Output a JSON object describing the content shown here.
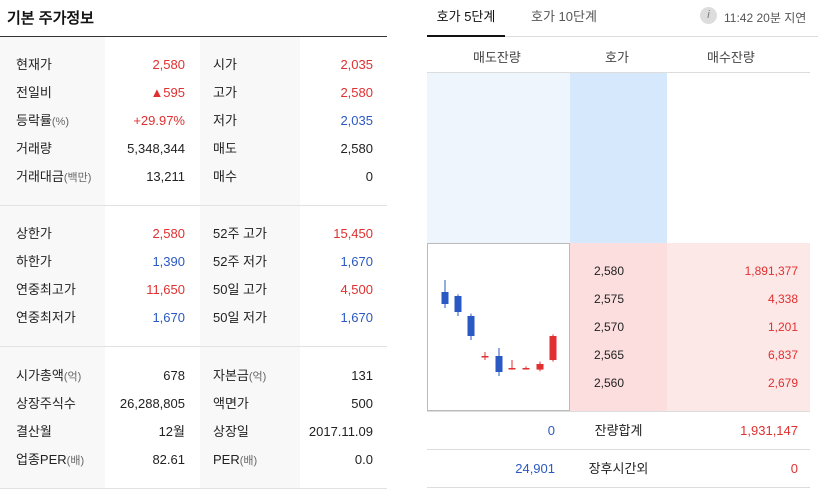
{
  "left": {
    "title": "기본 주가정보",
    "s1": [
      {
        "l1": "현재가",
        "l1s": "",
        "v1": "2,580",
        "c1": "red",
        "l2": "시가",
        "l2s": "",
        "v2": "2,035",
        "c2": "red"
      },
      {
        "l1": "전일비",
        "l1s": "",
        "v1": "▲595",
        "c1": "red",
        "l2": "고가",
        "l2s": "",
        "v2": "2,580",
        "c2": "red"
      },
      {
        "l1": "등락률",
        "l1s": "(%)",
        "v1": "+29.97%",
        "c1": "red",
        "l2": "저가",
        "l2s": "",
        "v2": "2,035",
        "c2": "blue"
      },
      {
        "l1": "거래량",
        "l1s": "",
        "v1": "5,348,344",
        "c1": "dark",
        "l2": "매도",
        "l2s": "",
        "v2": "2,580",
        "c2": "dark"
      },
      {
        "l1": "거래대금",
        "l1s": "(백만)",
        "v1": "13,211",
        "c1": "dark",
        "l2": "매수",
        "l2s": "",
        "v2": "0",
        "c2": "dark"
      }
    ],
    "s2": [
      {
        "l1": "상한가",
        "l1s": "",
        "v1": "2,580",
        "c1": "red",
        "l2": "52주 고가",
        "l2s": "",
        "v2": "15,450",
        "c2": "red"
      },
      {
        "l1": "하한가",
        "l1s": "",
        "v1": "1,390",
        "c1": "blue",
        "l2": "52주 저가",
        "l2s": "",
        "v2": "1,670",
        "c2": "blue"
      },
      {
        "l1": "연중최고가",
        "l1s": "",
        "v1": "11,650",
        "c1": "red",
        "l2": "50일 고가",
        "l2s": "",
        "v2": "4,500",
        "c2": "red"
      },
      {
        "l1": "연중최저가",
        "l1s": "",
        "v1": "1,670",
        "c1": "blue",
        "l2": "50일 저가",
        "l2s": "",
        "v2": "1,670",
        "c2": "blue"
      }
    ],
    "s3": [
      {
        "l1": "시가총액",
        "l1s": "(억)",
        "v1": "678",
        "c1": "dark",
        "l2": "자본금",
        "l2s": "(억)",
        "v2": "131",
        "c2": "dark"
      },
      {
        "l1": "상장주식수",
        "l1s": "",
        "v1": "26,288,805",
        "c1": "dark",
        "l2": "액면가",
        "l2s": "",
        "v2": "500",
        "c2": "dark"
      },
      {
        "l1": "결산월",
        "l1s": "",
        "v1": "12월",
        "c1": "dark",
        "l2": "상장일",
        "l2s": "",
        "v2": "2017.11.09",
        "c2": "dark"
      },
      {
        "l1": "업종PER",
        "l1s": "(배)",
        "v1": "82.61",
        "c1": "dark",
        "l2": "PER",
        "l2s": "(배)",
        "v2": "0.0",
        "c2": "dark"
      }
    ]
  },
  "tabs": {
    "t1": "호가 5단계",
    "t2": "호가 10단계",
    "info": "i",
    "delay": "11:42 20분 지연"
  },
  "orderbook": {
    "headers": {
      "ask": "매도잔량",
      "price": "호가",
      "bid": "매수잔량"
    },
    "bids": [
      {
        "price": "2,580",
        "qty": "1,891,377"
      },
      {
        "price": "2,575",
        "qty": "4,338"
      },
      {
        "price": "2,570",
        "qty": "1,201"
      },
      {
        "price": "2,565",
        "qty": "6,837"
      },
      {
        "price": "2,560",
        "qty": "2,679"
      }
    ],
    "total": {
      "ask": "0",
      "label": "잔량합계",
      "bid": "1,931,147"
    },
    "after": {
      "ask": "24,901",
      "label": "장후시간외",
      "bid": "0"
    }
  },
  "colors": {
    "red": "#e03030",
    "blue": "#2b59c3"
  },
  "mini_chart": {
    "candles": [
      {
        "o": 2575,
        "c": 2560,
        "h": 2590,
        "l": 2555
      },
      {
        "o": 2570,
        "c": 2550,
        "h": 2572,
        "l": 2545
      },
      {
        "o": 2545,
        "c": 2520,
        "h": 2548,
        "l": 2515
      },
      {
        "o": 2495,
        "c": 2495,
        "h": 2500,
        "l": 2490
      },
      {
        "o": 2495,
        "c": 2475,
        "h": 2505,
        "l": 2470
      },
      {
        "o": 2480,
        "c": 2480,
        "h": 2490,
        "l": 2478
      },
      {
        "o": 2480,
        "c": 2480,
        "h": 2482,
        "l": 2478
      },
      {
        "o": 2478,
        "c": 2485,
        "h": 2488,
        "l": 2476
      },
      {
        "o": 2490,
        "c": 2520,
        "h": 2522,
        "l": 2488
      }
    ]
  }
}
